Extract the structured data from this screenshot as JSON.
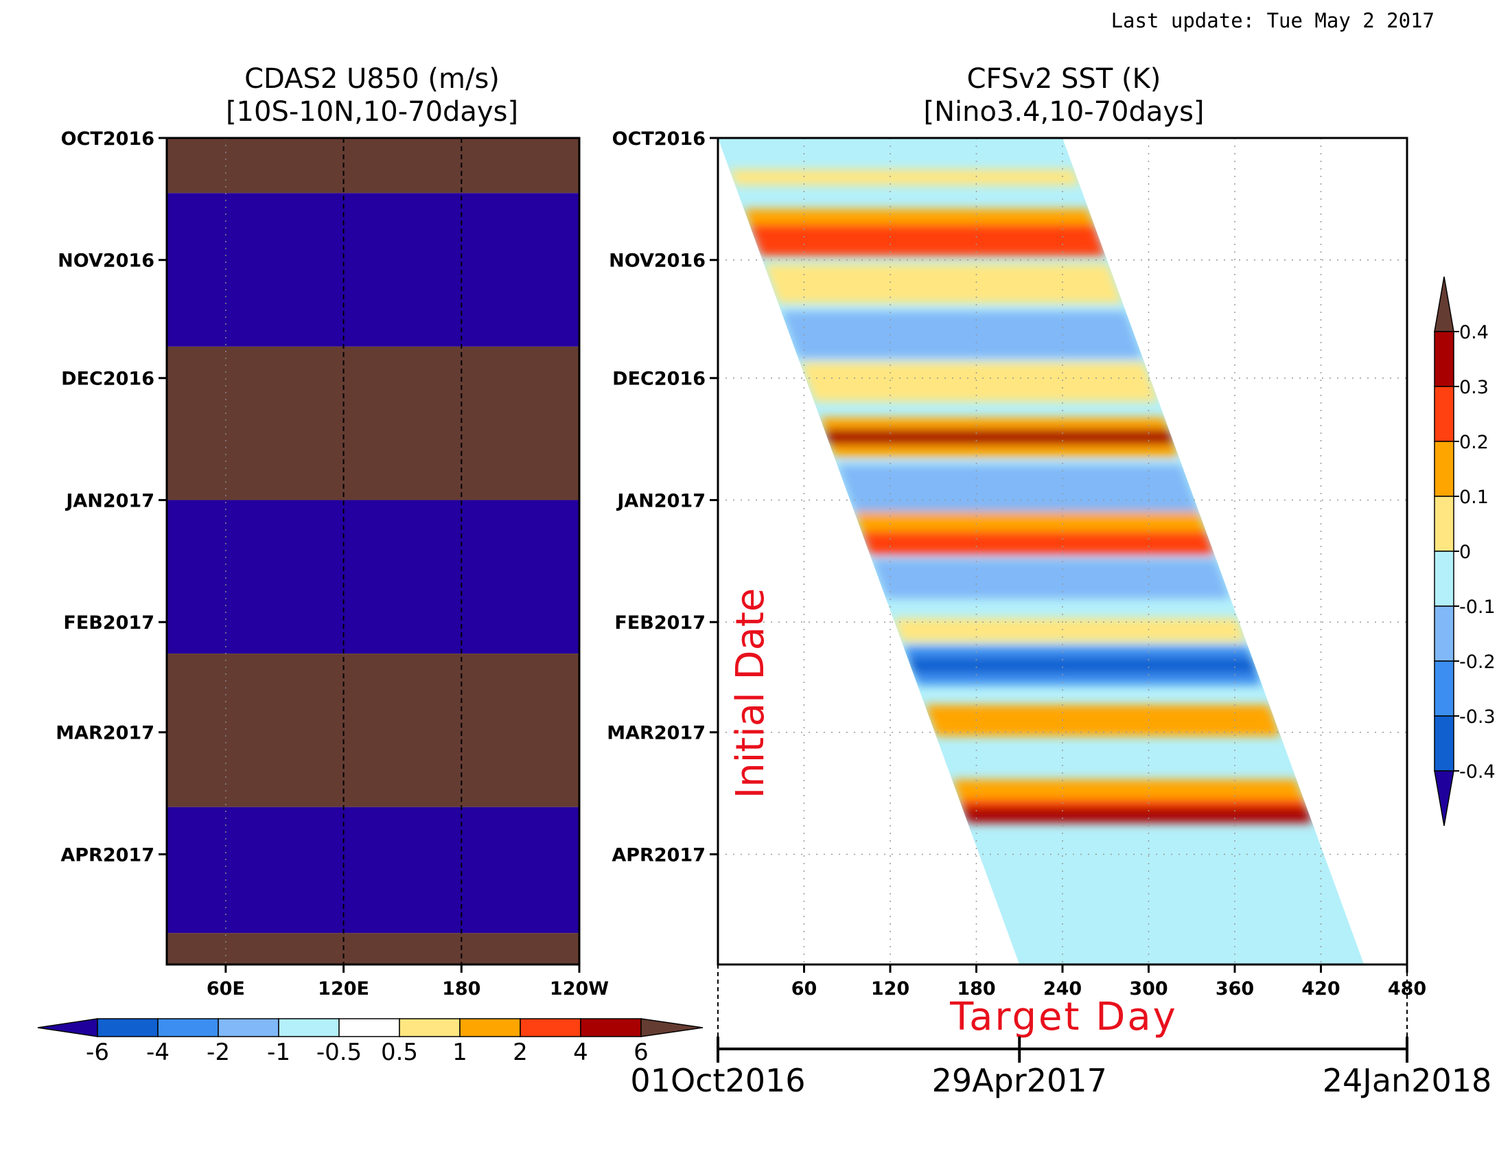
{
  "last_update": "Last update: Tue May 2 2017",
  "left_panel": {
    "title_line1": "CDAS2 U850 (m/s)",
    "title_line2": "[10S-10N,10-70days]"
  },
  "right_panel": {
    "title_line1": "CFSv2 SST (K)",
    "title_line2": "[Nino3.4,10-70days]",
    "ylabel": "Initial Date",
    "xlabel": "Target Day"
  },
  "colors": {
    "brown": "#653c32",
    "purple": "#23009f",
    "sst_palette": [
      "#20009c",
      "#1060d0",
      "#3c8ff0",
      "#80b8f8",
      "#b4f0fa",
      "#ffe680",
      "#ffa500",
      "#ff4010",
      "#a80000",
      "#653c32"
    ]
  },
  "chart_data": [
    {
      "type": "heatmap",
      "title": "CDAS2 U850 (m/s)",
      "subtitle": "[10S-10N,10-70days]",
      "x_ticks": [
        "60E",
        "120E",
        "180",
        "120W"
      ],
      "x_tick_values": [
        60,
        120,
        180,
        240
      ],
      "xlim": [
        30,
        240
      ],
      "y_ticks": [
        "OCT2016",
        "NOV2016",
        "DEC2016",
        "JAN2017",
        "FEB2017",
        "MAR2017",
        "APR2017"
      ],
      "y_tick_days": [
        0,
        31,
        61,
        92,
        123,
        151,
        182
      ],
      "ylim_days": [
        0,
        210
      ],
      "vlines": [
        120,
        180
      ],
      "bands": [
        {
          "start_day": 0,
          "end_day": 14,
          "class": "above 6"
        },
        {
          "start_day": 14,
          "end_day": 53,
          "class": "below -6"
        },
        {
          "start_day": 53,
          "end_day": 92,
          "class": "above 6"
        },
        {
          "start_day": 92,
          "end_day": 131,
          "class": "below -6"
        },
        {
          "start_day": 131,
          "end_day": 170,
          "class": "above 6"
        },
        {
          "start_day": 170,
          "end_day": 202,
          "class": "below -6"
        },
        {
          "start_day": 202,
          "end_day": 210,
          "class": "above 6"
        }
      ],
      "colorbar": {
        "orientation": "horizontal",
        "labels": [
          "-6",
          "-4",
          "-2",
          "-1",
          "-0.5",
          "0.5",
          "1",
          "2",
          "4",
          "6"
        ],
        "colors": [
          "#20009c",
          "#1060d0",
          "#3c8ff0",
          "#80b8f8",
          "#b4f0fa",
          "#ffffff",
          "#ffe680",
          "#ffa500",
          "#ff4010",
          "#a80000",
          "#653c32"
        ]
      }
    },
    {
      "type": "heatmap",
      "title": "CFSv2 SST (K)",
      "subtitle": "[Nino3.4,10-70days]",
      "xlabel": "Target Day",
      "ylabel": "Initial Date",
      "x_ticks": [
        "60",
        "120",
        "180",
        "240",
        "300",
        "360",
        "420",
        "480"
      ],
      "x_tick_values": [
        60,
        120,
        180,
        240,
        300,
        360,
        420,
        480
      ],
      "xlim": [
        0,
        480
      ],
      "y_ticks": [
        "OCT2016",
        "NOV2016",
        "DEC2016",
        "JAN2017",
        "FEB2017",
        "MAR2017",
        "APR2017"
      ],
      "y_tick_days": [
        0,
        31,
        61,
        92,
        123,
        151,
        182
      ],
      "ylim_days": [
        0,
        210
      ],
      "forecast_window": {
        "start_lead_days": 0,
        "end_lead_days": 240
      },
      "date_axis": [
        "01Oct2016",
        "29Apr2017",
        "24Jan2018"
      ],
      "date_axis_values": [
        0,
        210,
        480
      ],
      "grid": true,
      "anomaly_bands": [
        {
          "init_day": 10,
          "half_width_days": 2,
          "value": 0.05
        },
        {
          "init_day": 24,
          "half_width_days": 6,
          "value": 0.15
        },
        {
          "init_day": 26,
          "half_width_days": 4,
          "value": 0.22
        },
        {
          "init_day": 37,
          "half_width_days": 5,
          "value": 0.05
        },
        {
          "init_day": 50,
          "half_width_days": 6,
          "value": -0.15
        },
        {
          "init_day": 62,
          "half_width_days": 5,
          "value": 0.05
        },
        {
          "init_day": 76,
          "half_width_days": 5,
          "value": 0.2
        },
        {
          "init_day": 76,
          "half_width_days": 2,
          "value": 0.33
        },
        {
          "init_day": 89,
          "half_width_days": 6,
          "value": -0.15
        },
        {
          "init_day": 100,
          "half_width_days": 5,
          "value": 0.12
        },
        {
          "init_day": 103,
          "half_width_days": 3,
          "value": 0.22
        },
        {
          "init_day": 112,
          "half_width_days": 5,
          "value": -0.1
        },
        {
          "init_day": 125,
          "half_width_days": 3,
          "value": 0.1
        },
        {
          "init_day": 134,
          "half_width_days": 5,
          "value": -0.2
        },
        {
          "init_day": 134,
          "half_width_days": 2,
          "value": -0.38
        },
        {
          "init_day": 148,
          "half_width_days": 4,
          "value": 0.12
        },
        {
          "init_day": 168,
          "half_width_days": 5,
          "value": 0.15
        },
        {
          "init_day": 171,
          "half_width_days": 3,
          "value": 0.25
        },
        {
          "init_day": 172,
          "half_width_days": 2,
          "value": 0.35
        }
      ],
      "colorbar": {
        "orientation": "vertical",
        "labels": [
          "0.4",
          "0.3",
          "0.2",
          "0.1",
          "0",
          "-0.1",
          "-0.2",
          "-0.3",
          "-0.4"
        ],
        "colors": [
          "#653c32",
          "#a80000",
          "#ff4010",
          "#ffa500",
          "#ffe680",
          "#b4f0fa",
          "#80b8f8",
          "#3c8ff0",
          "#1060d0",
          "#20009c"
        ]
      }
    }
  ]
}
